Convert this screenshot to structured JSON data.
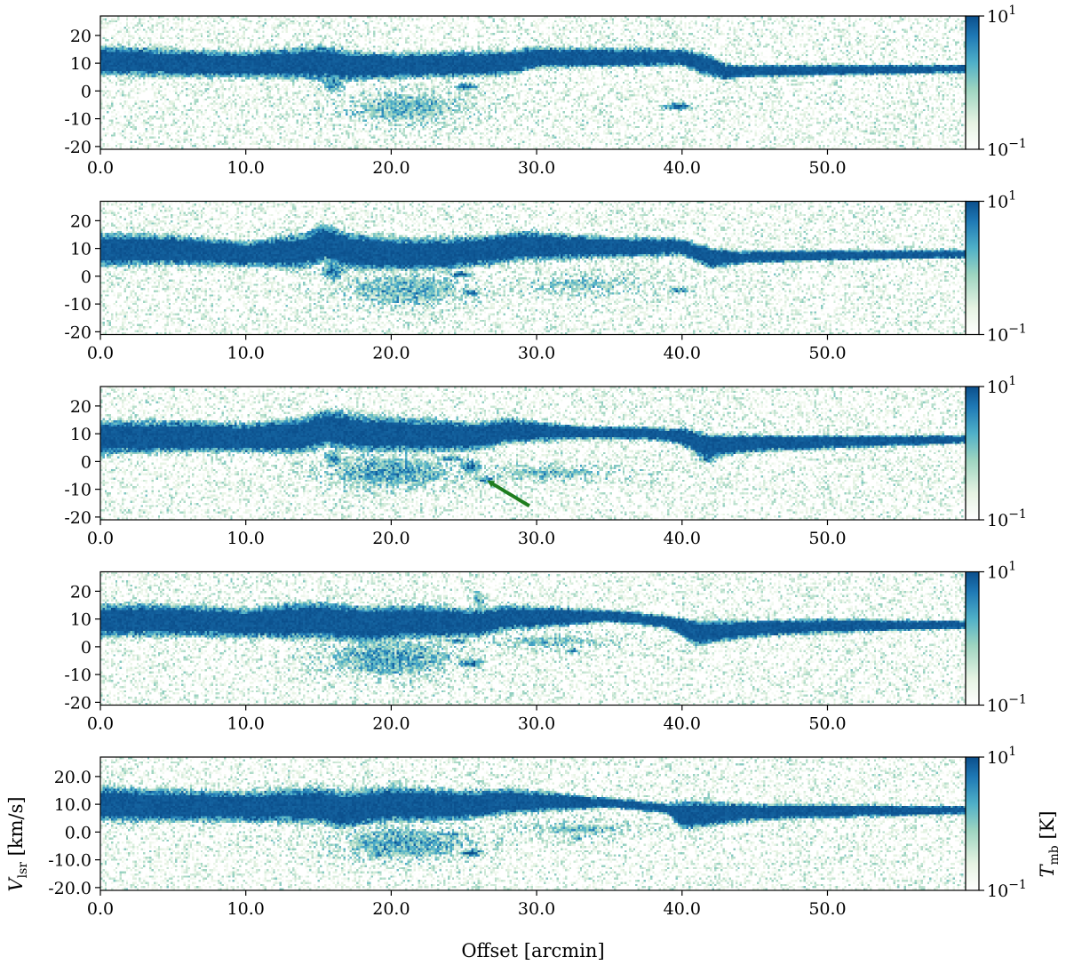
{
  "figure": {
    "xlabel": "Offset [arcmin]",
    "ylabel": "V_lsr [km/s]",
    "ylabel_main": "V",
    "ylabel_sub": "lsr",
    "ylabel_unit": " [km/s]",
    "colorbar_label_main": "T",
    "colorbar_label_sub": "mb",
    "colorbar_label_unit": " [K]",
    "colormap": [
      "#ffffff",
      "#e6f3e3",
      "#9dd4c0",
      "#4fb0c8",
      "#1f79b5",
      "#0b4f8c"
    ],
    "colorbar_ticks": [
      {
        "base": "10",
        "exp": "1",
        "value": 10
      },
      {
        "base": "10",
        "exp": "−1",
        "value": 0.1
      }
    ],
    "arrow_color": "#1e7d1e"
  },
  "chart_data": [
    {
      "type": "heatmap",
      "panel": 1,
      "xlim": [
        0,
        59.5
      ],
      "ylim": [
        -21,
        27
      ],
      "x_ticks": [
        0,
        10,
        20,
        30,
        40,
        50
      ],
      "x_tick_labels": [
        "0.0",
        "10.0",
        "20.0",
        "30.0",
        "40.0",
        "50.0"
      ],
      "y_ticks": [
        20,
        10,
        0,
        -10,
        -20
      ],
      "y_tick_labels": [
        "20",
        "10",
        "0",
        "-10",
        "-20"
      ],
      "clim": [
        0.1,
        10
      ],
      "clim_scale": "log",
      "main_band": [
        [
          0,
          11
        ],
        [
          5,
          10
        ],
        [
          10,
          9.5
        ],
        [
          14,
          10
        ],
        [
          15.5,
          10
        ],
        [
          17,
          9
        ],
        [
          20,
          9
        ],
        [
          24,
          9.5
        ],
        [
          28,
          10
        ],
        [
          30,
          12
        ],
        [
          35,
          12
        ],
        [
          40,
          12
        ],
        [
          42,
          9
        ],
        [
          43,
          7
        ],
        [
          50,
          7.5
        ],
        [
          59.5,
          8
        ]
      ],
      "band_halfwidth": [
        [
          0,
          3.5
        ],
        [
          10,
          3
        ],
        [
          15,
          4
        ],
        [
          20,
          3
        ],
        [
          28,
          3
        ],
        [
          30,
          2.5
        ],
        [
          40,
          2
        ],
        [
          42,
          2.5
        ],
        [
          44,
          1.5
        ],
        [
          59.5,
          1
        ]
      ],
      "clumps": [
        {
          "x": 25.2,
          "v": 1.5,
          "sx": 0.8,
          "sv": 1.2,
          "level": 0.7
        },
        {
          "x": 39.7,
          "v": -5.5,
          "sx": 0.9,
          "sv": 1.2,
          "level": 0.75
        },
        {
          "x": 16,
          "v": 3,
          "sx": 0.8,
          "sv": 4,
          "level": 0.6
        }
      ],
      "diffuse": [
        {
          "x": 21,
          "v": -6,
          "sx": 4.5,
          "sv": 6,
          "level": 0.35
        }
      ]
    },
    {
      "type": "heatmap",
      "panel": 2,
      "xlim": [
        0,
        59.5
      ],
      "ylim": [
        -21,
        27
      ],
      "x_ticks": [
        0,
        10,
        20,
        30,
        40,
        50
      ],
      "x_tick_labels": [
        "0.0",
        "10.0",
        "20.0",
        "30.0",
        "40.0",
        "50.0"
      ],
      "y_ticks": [
        20,
        10,
        0,
        -10,
        -20
      ],
      "y_tick_labels": [
        "20",
        "10",
        "0",
        "-10",
        "-20"
      ],
      "clim": [
        0.1,
        10
      ],
      "clim_scale": "log",
      "main_band": [
        [
          0,
          9.5
        ],
        [
          5,
          9.5
        ],
        [
          10,
          8
        ],
        [
          14,
          9
        ],
        [
          15.5,
          12
        ],
        [
          17,
          9
        ],
        [
          20,
          8
        ],
        [
          24,
          8
        ],
        [
          27,
          9.5
        ],
        [
          29,
          11
        ],
        [
          33,
          10.5
        ],
        [
          40,
          10.5
        ],
        [
          42,
          6.5
        ],
        [
          50,
          7.5
        ],
        [
          59.5,
          8
        ]
      ],
      "band_halfwidth": [
        [
          0,
          4
        ],
        [
          10,
          3
        ],
        [
          15,
          4.5
        ],
        [
          20,
          4
        ],
        [
          29,
          3.5
        ],
        [
          35,
          2.5
        ],
        [
          40,
          2
        ],
        [
          42,
          2.5
        ],
        [
          44,
          1.5
        ],
        [
          59.5,
          1
        ]
      ],
      "clumps": [
        {
          "x": 24.8,
          "v": 0.5,
          "sx": 0.8,
          "sv": 1.2,
          "level": 0.7
        },
        {
          "x": 25.5,
          "v": -6,
          "sx": 0.7,
          "sv": 1.2,
          "level": 0.6
        },
        {
          "x": 39.8,
          "v": -5,
          "sx": 0.8,
          "sv": 1.1,
          "level": 0.6
        },
        {
          "x": 16,
          "v": 2,
          "sx": 0.8,
          "sv": 4,
          "level": 0.6
        }
      ],
      "diffuse": [
        {
          "x": 21,
          "v": -5,
          "sx": 4.5,
          "sv": 6,
          "level": 0.4
        },
        {
          "x": 33,
          "v": -3,
          "sx": 5,
          "sv": 4,
          "level": 0.25
        }
      ]
    },
    {
      "type": "heatmap",
      "panel": 3,
      "xlim": [
        0,
        59.5
      ],
      "ylim": [
        -21,
        27
      ],
      "x_ticks": [
        0,
        10,
        20,
        30,
        40,
        50
      ],
      "x_tick_labels": [
        "0.0",
        "10.0",
        "20.0",
        "30.0",
        "40.0",
        "50.0"
      ],
      "y_ticks": [
        20,
        10,
        0,
        -10,
        -20
      ],
      "y_tick_labels": [
        "20",
        "10",
        "0",
        "-10",
        "-20"
      ],
      "clim": [
        0.1,
        10
      ],
      "clim_scale": "log",
      "main_band": [
        [
          0,
          8.5
        ],
        [
          5,
          9
        ],
        [
          10,
          8.5
        ],
        [
          14,
          9.5
        ],
        [
          15.5,
          12
        ],
        [
          18,
          10
        ],
        [
          22,
          9.5
        ],
        [
          26,
          9
        ],
        [
          28,
          11
        ],
        [
          33,
          10.5
        ],
        [
          38,
          10
        ],
        [
          40,
          9
        ],
        [
          41.5,
          5.5
        ],
        [
          45,
          6.5
        ],
        [
          50,
          7
        ],
        [
          59.5,
          8
        ]
      ],
      "band_halfwidth": [
        [
          0,
          4
        ],
        [
          10,
          3.5
        ],
        [
          15,
          4.5
        ],
        [
          22,
          4
        ],
        [
          28,
          3
        ],
        [
          33,
          1.5
        ],
        [
          39,
          1.5
        ],
        [
          41.5,
          3
        ],
        [
          45,
          2
        ],
        [
          59.5,
          1
        ]
      ],
      "clumps": [
        {
          "x": 25.5,
          "v": -2,
          "sx": 0.6,
          "sv": 2.5,
          "level": 0.75
        },
        {
          "x": 26.5,
          "v": -6.5,
          "sx": 0.6,
          "sv": 1.2,
          "level": 0.7
        },
        {
          "x": 24,
          "v": 1,
          "sx": 1,
          "sv": 1,
          "level": 0.6
        },
        {
          "x": 41.8,
          "v": 1,
          "sx": 0.6,
          "sv": 1.5,
          "level": 0.7
        },
        {
          "x": 16,
          "v": 1,
          "sx": 0.7,
          "sv": 3.5,
          "level": 0.55
        }
      ],
      "diffuse": [
        {
          "x": 20,
          "v": -4,
          "sx": 4.5,
          "sv": 6,
          "level": 0.45
        },
        {
          "x": 31,
          "v": -4,
          "sx": 5,
          "sv": 3,
          "level": 0.3
        }
      ],
      "arrow": {
        "from": [
          29.5,
          -16
        ],
        "to": [
          26.8,
          -7.5
        ]
      }
    },
    {
      "type": "heatmap",
      "panel": 4,
      "xlim": [
        0,
        59.5
      ],
      "ylim": [
        -21,
        27
      ],
      "x_ticks": [
        0,
        10,
        20,
        30,
        40,
        50
      ],
      "x_tick_labels": [
        "0.0",
        "10.0",
        "20.0",
        "30.0",
        "40.0",
        "50.0"
      ],
      "y_ticks": [
        20,
        10,
        0,
        -10,
        -20
      ],
      "y_tick_labels": [
        "20",
        "10",
        "0",
        "-10",
        "-20"
      ],
      "clim": [
        0.1,
        10
      ],
      "clim_scale": "log",
      "main_band": [
        [
          0,
          9.5
        ],
        [
          5,
          9.5
        ],
        [
          10,
          8.5
        ],
        [
          14,
          9.5
        ],
        [
          16,
          9
        ],
        [
          18,
          8
        ],
        [
          22,
          9
        ],
        [
          26,
          8.5
        ],
        [
          28,
          10.5
        ],
        [
          35,
          11
        ],
        [
          39,
          9
        ],
        [
          41,
          5
        ],
        [
          45,
          6.5
        ],
        [
          50,
          7.5
        ],
        [
          59.5,
          8
        ]
      ],
      "band_halfwidth": [
        [
          0,
          4
        ],
        [
          10,
          3.5
        ],
        [
          15,
          4.5
        ],
        [
          22,
          4
        ],
        [
          28,
          3
        ],
        [
          35,
          1.5
        ],
        [
          39,
          1.5
        ],
        [
          41,
          3
        ],
        [
          45,
          2
        ],
        [
          59.5,
          1
        ]
      ],
      "clumps": [
        {
          "x": 25.5,
          "v": -6,
          "sx": 0.8,
          "sv": 1.5,
          "level": 0.75
        },
        {
          "x": 24.5,
          "v": 2,
          "sx": 1.2,
          "sv": 1,
          "level": 0.55
        },
        {
          "x": 32.5,
          "v": -1.5,
          "sx": 0.5,
          "sv": 1,
          "level": 0.5
        },
        {
          "x": 26,
          "v": 17,
          "sx": 0.5,
          "sv": 3,
          "level": 0.45
        }
      ],
      "diffuse": [
        {
          "x": 20,
          "v": -4,
          "sx": 4.5,
          "sv": 7,
          "level": 0.45
        },
        {
          "x": 31,
          "v": 2,
          "sx": 4,
          "sv": 3,
          "level": 0.3
        }
      ]
    },
    {
      "type": "heatmap",
      "panel": 5,
      "xlim": [
        0,
        59.5
      ],
      "ylim": [
        -21,
        27
      ],
      "x_ticks": [
        0,
        10,
        20,
        30,
        40,
        50
      ],
      "x_tick_labels": [
        "0.0",
        "10.0",
        "20.0",
        "30.0",
        "40.0",
        "50.0"
      ],
      "y_ticks": [
        20,
        10,
        0,
        -10,
        -20
      ],
      "y_tick_labels": [
        "20.0",
        "10.0",
        "0.0",
        "-10.0",
        "-20.0"
      ],
      "clim": [
        0.1,
        10
      ],
      "clim_scale": "log",
      "main_band": [
        [
          0,
          10
        ],
        [
          5,
          9.5
        ],
        [
          10,
          9
        ],
        [
          15,
          9.5
        ],
        [
          17,
          8
        ],
        [
          20,
          10
        ],
        [
          25,
          9.5
        ],
        [
          28,
          11
        ],
        [
          35,
          10.5
        ],
        [
          39,
          8.5
        ],
        [
          40,
          6
        ],
        [
          44,
          7
        ],
        [
          50,
          7.5
        ],
        [
          59.5,
          8
        ]
      ],
      "band_halfwidth": [
        [
          0,
          4
        ],
        [
          10,
          3.5
        ],
        [
          16,
          4.5
        ],
        [
          22,
          4
        ],
        [
          28,
          3
        ],
        [
          35,
          1.2
        ],
        [
          39,
          1.2
        ],
        [
          40,
          3.5
        ],
        [
          45,
          2
        ],
        [
          59.5,
          1
        ]
      ],
      "clumps": [
        {
          "x": 25.5,
          "v": -7.5,
          "sx": 0.8,
          "sv": 1.5,
          "level": 0.75
        },
        {
          "x": 24,
          "v": -1,
          "sx": 1,
          "sv": 1,
          "level": 0.6
        },
        {
          "x": 32.8,
          "v": -2,
          "sx": 0.4,
          "sv": 1,
          "level": 0.55
        },
        {
          "x": 19,
          "v": -8,
          "sx": 0.7,
          "sv": 1,
          "level": 0.55
        }
      ],
      "diffuse": [
        {
          "x": 21,
          "v": -4,
          "sx": 4.5,
          "sv": 6,
          "level": 0.45
        },
        {
          "x": 33,
          "v": 1,
          "sx": 4,
          "sv": 3,
          "level": 0.3
        }
      ]
    }
  ]
}
